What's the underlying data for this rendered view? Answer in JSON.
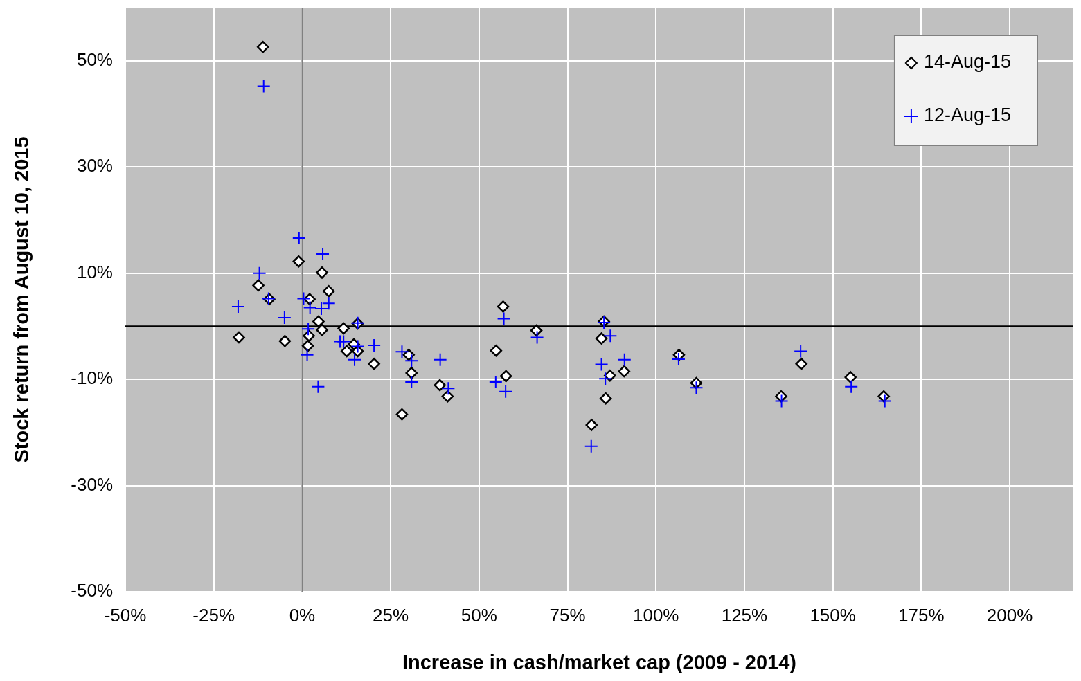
{
  "chart_data": {
    "type": "scatter",
    "xlabel": "Increase in cash/market cap (2009 - 2014)",
    "ylabel": "Stock return from August 10, 2015",
    "xlim": [
      -50,
      218
    ],
    "ylim": [
      -50,
      60
    ],
    "xticks": [
      {
        "value": -50,
        "label": "-50%"
      },
      {
        "value": -25,
        "label": "-25%"
      },
      {
        "value": 0,
        "label": "0%"
      },
      {
        "value": 25,
        "label": "25%"
      },
      {
        "value": 50,
        "label": "50%"
      },
      {
        "value": 75,
        "label": "75%"
      },
      {
        "value": 100,
        "label": "100%"
      },
      {
        "value": 125,
        "label": "125%"
      },
      {
        "value": 150,
        "label": "150%"
      },
      {
        "value": 175,
        "label": "175%"
      },
      {
        "value": 200,
        "label": "200%"
      }
    ],
    "yticks": [
      {
        "value": -50,
        "label": "-50%"
      },
      {
        "value": -30,
        "label": "-30%"
      },
      {
        "value": -10,
        "label": "-10%"
      },
      {
        "value": 10,
        "label": "10%"
      },
      {
        "value": 30,
        "label": "30%"
      },
      {
        "value": 50,
        "label": "50%"
      }
    ],
    "grid": true,
    "legend": "top right",
    "series": [
      {
        "name": "14-Aug-15",
        "color": "#000000",
        "marker": "diamond",
        "x": [
          -11.1,
          -17.9,
          -12.4,
          -9.3,
          -4.9,
          -1.0,
          2.1,
          5.6,
          7.5,
          1.9,
          1.6,
          4.6,
          5.6,
          11.7,
          15.7,
          12.6,
          14.6,
          15.7,
          20.3,
          30.1,
          30.9,
          28.2,
          38.9,
          41.1,
          56.8,
          54.8,
          57.6,
          66.2,
          85.3,
          84.6,
          87.0,
          91.0,
          85.8,
          81.8,
          106.5,
          111.4,
          141.1,
          135.4,
          155.0,
          164.4
        ],
        "values": [
          52.6,
          -2.1,
          7.7,
          5.1,
          -2.8,
          12.2,
          5.1,
          10.1,
          6.6,
          -1.8,
          -3.7,
          0.9,
          -0.7,
          -0.4,
          0.5,
          -4.7,
          -3.4,
          -4.7,
          -7.1,
          -5.4,
          -8.8,
          -16.6,
          -11.1,
          -13.2,
          3.7,
          -4.6,
          -9.4,
          -0.8,
          0.9,
          -2.3,
          -9.3,
          -8.5,
          -13.6,
          -18.6,
          -5.4,
          -10.7,
          -7.1,
          -13.2,
          -9.6,
          -13.2
        ]
      },
      {
        "name": "12-Aug-15",
        "color": "#0000ff",
        "marker": "cross",
        "x": [
          -10.9,
          -18.1,
          -12.1,
          -9.5,
          -5.0,
          -0.9,
          0.4,
          5.8,
          2.2,
          5.4,
          7.5,
          1.7,
          1.4,
          4.5,
          15.7,
          10.7,
          11.7,
          15.7,
          14.8,
          20.3,
          28.2,
          30.9,
          30.9,
          39.0,
          41.3,
          57.0,
          54.7,
          57.5,
          66.4,
          85.3,
          87.1,
          84.6,
          85.7,
          91.1,
          81.7,
          106.4,
          111.4,
          140.9,
          135.5,
          155.2,
          164.7
        ],
        "values": [
          45.2,
          3.7,
          10.0,
          5.2,
          1.6,
          16.6,
          5.2,
          13.6,
          3.5,
          3.3,
          4.3,
          -0.5,
          -5.4,
          -11.4,
          0.6,
          -2.9,
          -2.9,
          -3.8,
          -6.3,
          -3.6,
          -4.8,
          -6.5,
          -10.5,
          -6.3,
          -11.7,
          1.4,
          -10.5,
          -12.3,
          -2.1,
          0.7,
          -1.8,
          -7.2,
          -9.9,
          -6.3,
          -22.6,
          -6.2,
          -11.6,
          -4.7,
          -14.1,
          -11.4,
          -14.1
        ]
      }
    ]
  }
}
